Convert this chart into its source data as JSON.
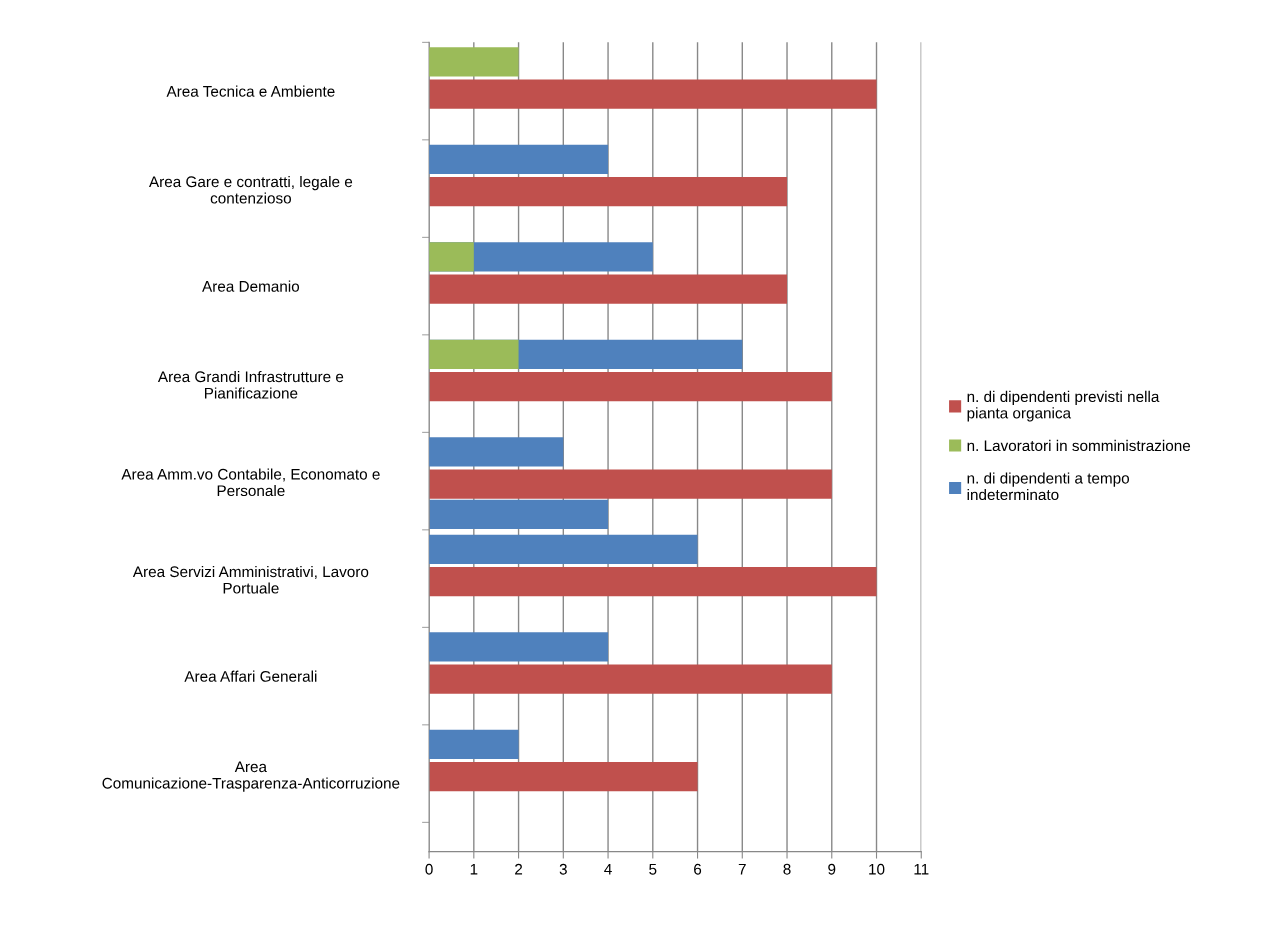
{
  "chart_data": {
    "type": "bar",
    "orientation": "horizontal",
    "categories": [
      "Area Tecnica e Ambiente",
      "Area Gare e contratti, legale e contenzioso",
      "Area Demanio",
      "Area Grandi Infrastrutture e Pianificazione",
      "Area Amm.vo Contabile, Economato e Personale",
      "Area Servizi Amministrativi, Lavoro Portuale",
      "Area Affari Generali",
      "Area Comunicazione-Trasparenza-Anticorruzione"
    ],
    "series": [
      {
        "name": "n. di dipendenti previsti nella pianta organica",
        "color": "#c0504d",
        "values": [
          10,
          8,
          8,
          9,
          9,
          10,
          9,
          6
        ]
      },
      {
        "name": "n. Lavoratori in somministrazione",
        "color": "#9bbb59",
        "values": [
          2,
          null,
          1,
          2,
          null,
          null,
          null,
          null
        ]
      },
      {
        "name": "n. di dipendenti a tempo indeterminato",
        "color": "#4f81bd",
        "values": [
          null,
          4,
          5,
          7,
          3,
          6,
          4,
          2
        ]
      },
      {
        "color": "#4f81bd",
        "values": [
          null,
          null,
          null,
          null,
          4,
          null,
          null,
          null
        ]
      }
    ],
    "xlim": [
      0,
      11
    ],
    "xticks": [
      0,
      1,
      2,
      3,
      4,
      5,
      6,
      7,
      8,
      9,
      10,
      11
    ],
    "grid": "x",
    "legend": "right"
  }
}
